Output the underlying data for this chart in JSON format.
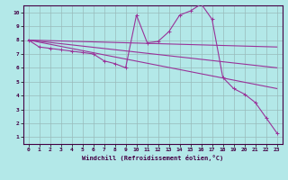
{
  "xlabel": "Windchill (Refroidissement éolien,°C)",
  "background_color": "#b3e8e8",
  "line_color": "#993399",
  "grid_color": "#99bbbb",
  "xlim": [
    -0.5,
    23.5
  ],
  "ylim": [
    0.5,
    10.5
  ],
  "xticks": [
    0,
    1,
    2,
    3,
    4,
    5,
    6,
    7,
    8,
    9,
    10,
    11,
    12,
    13,
    14,
    15,
    16,
    17,
    18,
    19,
    20,
    21,
    22,
    23
  ],
  "yticks": [
    1,
    2,
    3,
    4,
    5,
    6,
    7,
    8,
    9,
    10
  ],
  "hours": [
    0,
    1,
    2,
    3,
    4,
    5,
    6,
    7,
    8,
    9,
    10,
    11,
    12,
    13,
    14,
    15,
    16,
    17,
    18,
    19,
    20,
    21,
    22,
    23
  ],
  "temperature": [
    8.0,
    7.5,
    7.4,
    7.3,
    7.2,
    7.1,
    7.0,
    6.5,
    6.3,
    6.0,
    9.8,
    7.8,
    7.9,
    8.6,
    9.8,
    10.1,
    10.6,
    9.5,
    5.3,
    4.5,
    4.1,
    3.5,
    2.4,
    1.3
  ],
  "line1_x": [
    0,
    23
  ],
  "line1_y": [
    8.0,
    7.5
  ],
  "line2_x": [
    0,
    23
  ],
  "line2_y": [
    8.0,
    6.0
  ],
  "line3_x": [
    0,
    23
  ],
  "line3_y": [
    8.0,
    4.5
  ]
}
